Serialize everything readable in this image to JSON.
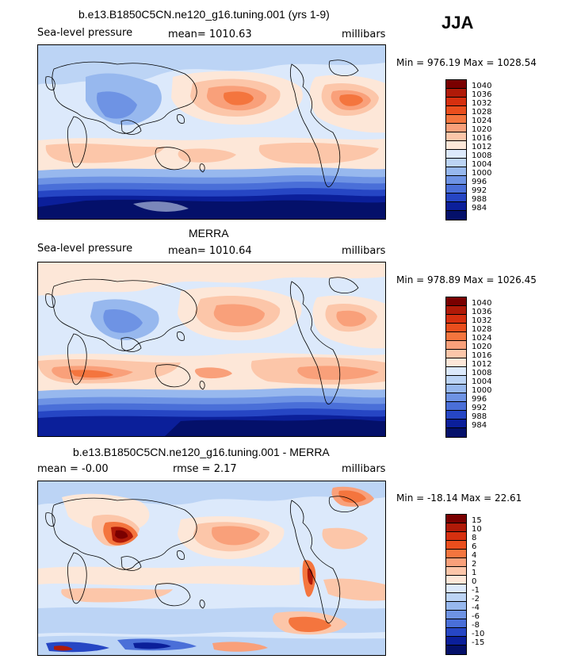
{
  "season": "JJA",
  "units_label": "millibars",
  "panels": [
    {
      "title": "b.e13.B1850C5CN.ne120_g16.tuning.001 (yrs 1-9)",
      "left_label": "Sea-level pressure",
      "center_label": "mean= 1010.63",
      "right_label": "millibars",
      "minmax": "Min = 976.19 Max = 1028.54",
      "colorbar_levels": [
        "1040",
        "1036",
        "1032",
        "1028",
        "1024",
        "1020",
        "1016",
        "1012",
        "1008",
        "1004",
        "1000",
        "996",
        "992",
        "988",
        "984"
      ]
    },
    {
      "title": "MERRA",
      "left_label": "Sea-level pressure",
      "center_label": "mean= 1010.64",
      "right_label": "millibars",
      "minmax": "Min = 978.89 Max = 1026.45",
      "colorbar_levels": [
        "1040",
        "1036",
        "1032",
        "1028",
        "1024",
        "1020",
        "1016",
        "1012",
        "1008",
        "1004",
        "1000",
        "996",
        "992",
        "988",
        "984"
      ]
    },
    {
      "title": "b.e13.B1850C5CN.ne120_g16.tuning.001 - MERRA",
      "left_label": "mean =  -0.00",
      "center_label": "rmse =   2.17",
      "right_label": "millibars",
      "minmax": "Min = -18.14 Max =  22.61",
      "colorbar_levels": [
        "15",
        "10",
        "8",
        "6",
        "4",
        "2",
        "1",
        "0",
        "-1",
        "-2",
        "-4",
        "-6",
        "-8",
        "-10",
        "-15"
      ]
    }
  ],
  "colors": {
    "abs_scale": [
      "#7a0000",
      "#b01a08",
      "#d6300f",
      "#ea4e1d",
      "#f4753e",
      "#f9a07a",
      "#fcc6a9",
      "#fde7d8",
      "#dce9fb",
      "#bcd4f5",
      "#97b8ee",
      "#6e93e4",
      "#4a6fd8",
      "#2646c4",
      "#0b1f9a",
      "#04106a"
    ],
    "diff_scale": [
      "#7a0000",
      "#b01a08",
      "#d6300f",
      "#ea4e1d",
      "#f4753e",
      "#f9a07a",
      "#fcc6a9",
      "#fde7d8",
      "#dce9fb",
      "#bcd4f5",
      "#97b8ee",
      "#6e93e4",
      "#4a6fd8",
      "#2646c4",
      "#0b1f9a",
      "#04106a"
    ]
  }
}
